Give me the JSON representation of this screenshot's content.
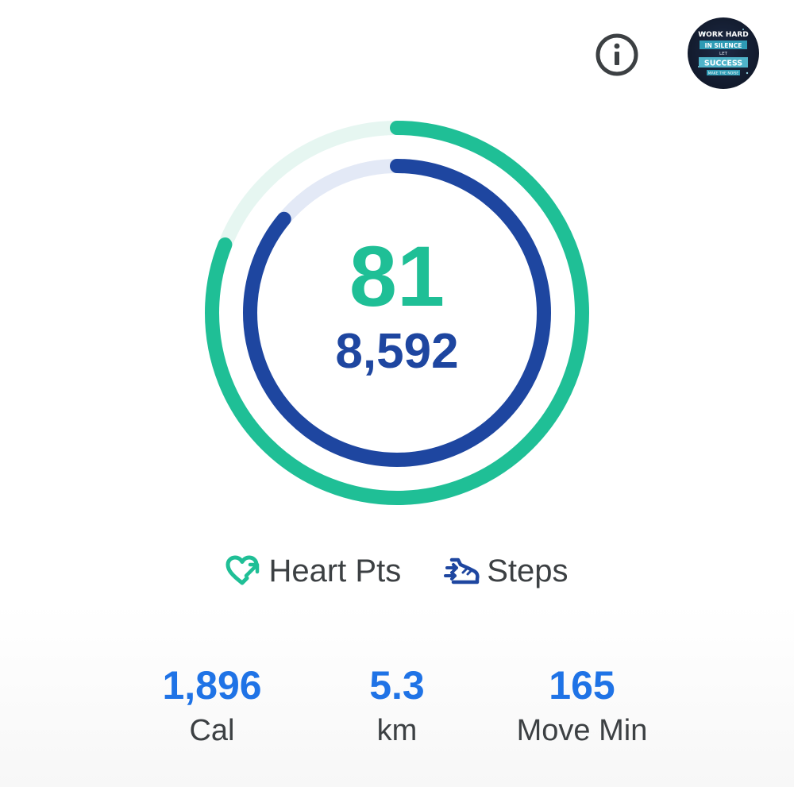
{
  "header": {
    "info_icon": "info-icon",
    "avatar_text": {
      "line1": "WORK HARD",
      "line2": "IN SILENCE",
      "line3": "LET",
      "line4": "SUCCESS",
      "line5": "MAKE THE NOISE"
    }
  },
  "goal_rings": {
    "heart_points": "81",
    "steps": "8,592",
    "heart_points_progress": 0.81,
    "steps_progress": 0.86,
    "colors": {
      "heart_points": "#1fbf96",
      "steps": "#1e46a0"
    }
  },
  "legend": {
    "heart_points_label": "Heart Pts",
    "steps_label": "Steps",
    "heart_icon": "heart-pts-icon",
    "steps_icon": "steps-shoe-icon"
  },
  "stats": {
    "calories": {
      "value": "1,896",
      "unit": "Cal"
    },
    "distance": {
      "value": "5.3",
      "unit": "km"
    },
    "move_minutes": {
      "value": "165",
      "unit": "Move Min"
    },
    "value_color": "#1f73e6"
  }
}
